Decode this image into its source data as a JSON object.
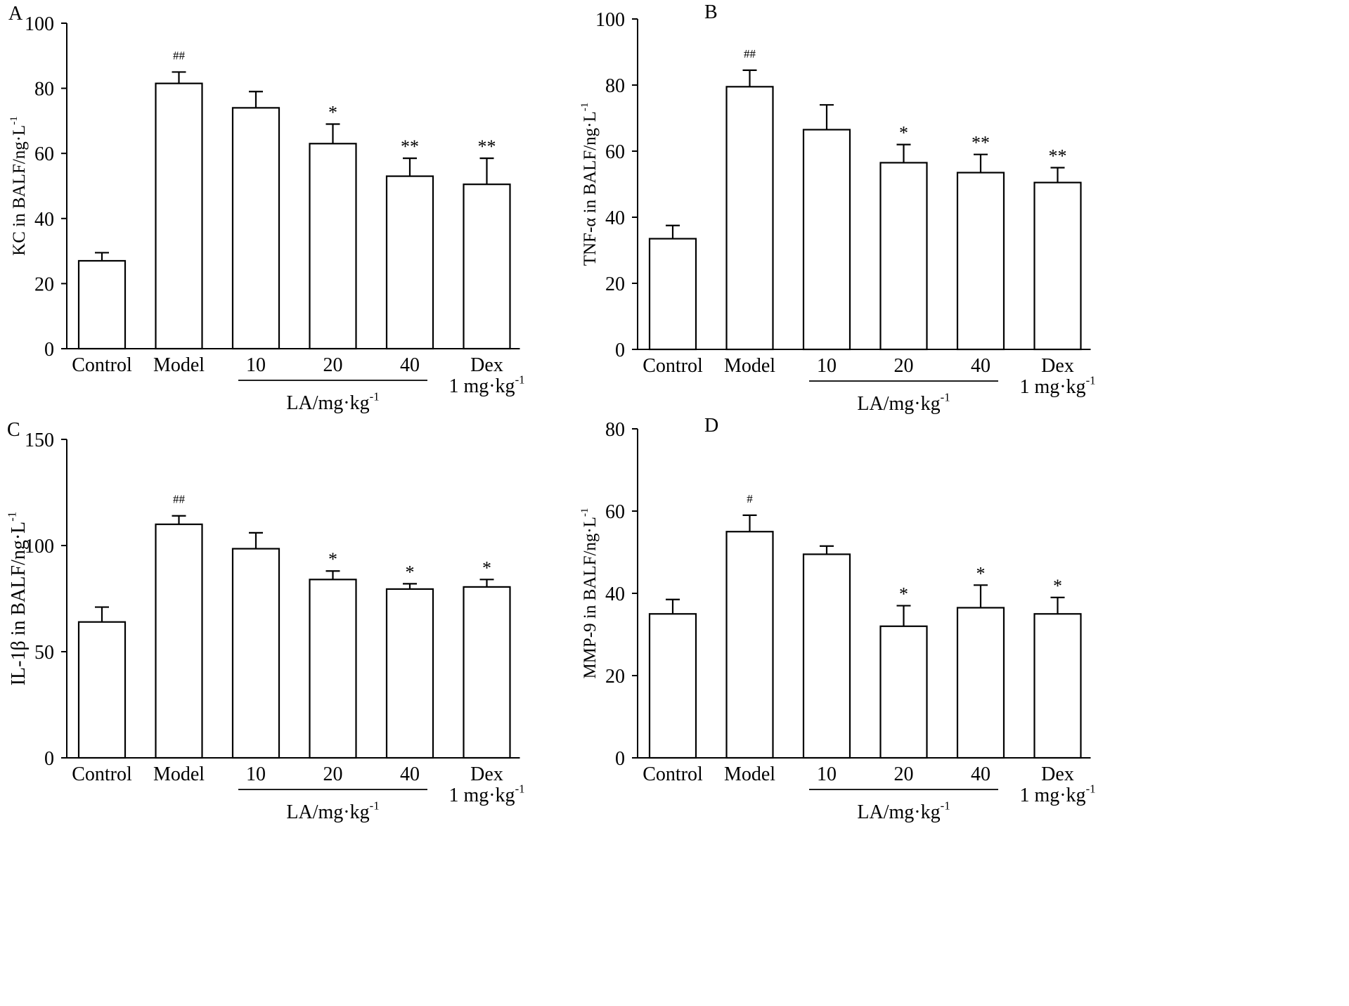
{
  "chart_data": [
    {
      "panel": "A",
      "type": "bar",
      "title": "",
      "ylabel": "KC in BALF/ng·L",
      "ylabel_sup": "-1",
      "ylim": [
        0,
        100
      ],
      "yticks": [
        0,
        20,
        40,
        60,
        80,
        100
      ],
      "categories": [
        "Control",
        "Model",
        "10",
        "20",
        "40",
        "Dex"
      ],
      "category_sublabel": {
        "index": 5,
        "text": "1 mg·kg",
        "sup": "-1"
      },
      "group_label": {
        "text": "LA/mg·kg",
        "sup": "-1",
        "from": 2,
        "to": 4
      },
      "values": [
        27,
        81.5,
        74,
        63,
        53,
        50.5
      ],
      "errors": [
        2.5,
        3.5,
        5,
        6,
        5.5,
        8
      ],
      "annotations": [
        "",
        "##",
        "",
        "*",
        "**",
        "**"
      ]
    },
    {
      "panel": "B",
      "type": "bar",
      "title": "",
      "ylabel": "TNF-α in BALF/ng·L",
      "ylabel_sup": "-1",
      "ylim": [
        0,
        100
      ],
      "yticks": [
        0,
        20,
        40,
        60,
        80,
        100
      ],
      "categories": [
        "Control",
        "Model",
        "10",
        "20",
        "40",
        "Dex"
      ],
      "category_sublabel": {
        "index": 5,
        "text": "1 mg·kg",
        "sup": "-1"
      },
      "group_label": {
        "text": "LA/mg·kg",
        "sup": "-1",
        "from": 2,
        "to": 4
      },
      "values": [
        33.5,
        79.5,
        66.5,
        56.5,
        53.5,
        50.5
      ],
      "errors": [
        4,
        5,
        7.5,
        5.5,
        5.5,
        4.5
      ],
      "annotations": [
        "",
        "##",
        "",
        "*",
        "**",
        "**"
      ]
    },
    {
      "panel": "C",
      "type": "bar",
      "title": "",
      "ylabel": "IL-1β in BALF/ng·L",
      "ylabel_sup": "-1",
      "ylim": [
        0,
        150
      ],
      "yticks": [
        0,
        50,
        100,
        150
      ],
      "categories": [
        "Control",
        "Model",
        "10",
        "20",
        "40",
        "Dex"
      ],
      "category_sublabel": {
        "index": 5,
        "text": "1 mg·kg",
        "sup": "-1"
      },
      "group_label": {
        "text": "LA/mg·kg",
        "sup": "-1",
        "from": 2,
        "to": 4
      },
      "values": [
        64,
        110,
        98.5,
        84,
        79.5,
        80.5
      ],
      "errors": [
        7,
        4,
        7.5,
        4,
        2.5,
        3.5
      ],
      "annotations": [
        "",
        "##",
        "",
        "*",
        "*",
        "*"
      ]
    },
    {
      "panel": "D",
      "type": "bar",
      "title": "",
      "ylabel": "MMP-9 in BALF/ng·L",
      "ylabel_sup": "-1",
      "ylim": [
        0,
        80
      ],
      "yticks": [
        0,
        20,
        40,
        60,
        80
      ],
      "categories": [
        "Control",
        "Model",
        "10",
        "20",
        "40",
        "Dex"
      ],
      "category_sublabel": {
        "index": 5,
        "text": "1 mg·kg",
        "sup": "-1"
      },
      "group_label": {
        "text": "LA/mg·kg",
        "sup": "-1",
        "from": 2,
        "to": 4
      },
      "values": [
        35,
        55,
        49.5,
        32,
        36.5,
        35
      ],
      "errors": [
        3.5,
        4,
        2,
        5,
        5.5,
        4
      ],
      "annotations": [
        "",
        "#",
        "",
        "*",
        "*",
        "*"
      ]
    }
  ]
}
